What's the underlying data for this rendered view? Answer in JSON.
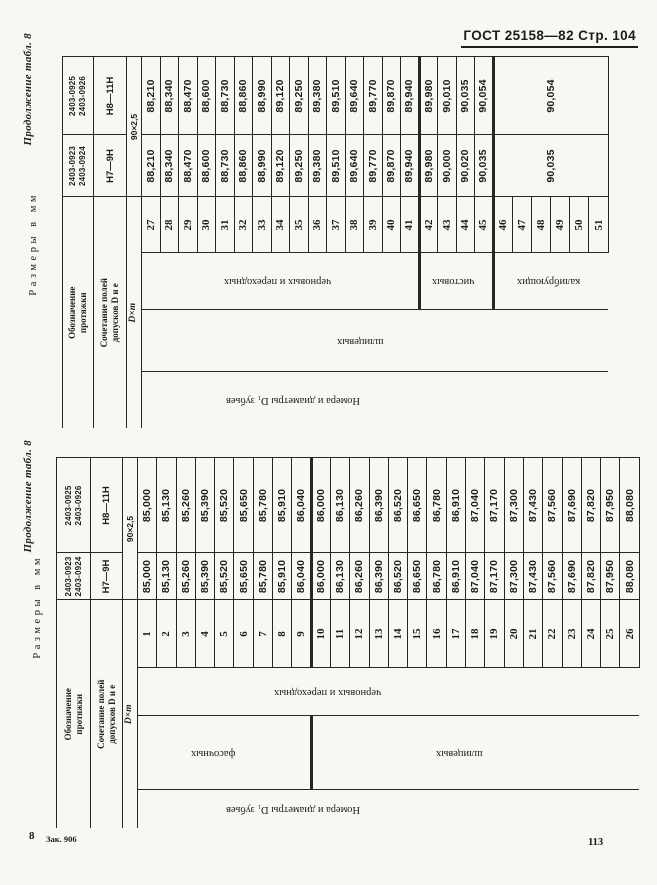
{
  "page": {
    "header": "ГОСТ 25158—82 Стр. 104",
    "footer_mark": "8",
    "footer_order": "Зак. 906",
    "footer_page": "113",
    "ink": "#1c1c1c",
    "paper": "#f8f7f2"
  },
  "tables": [
    {
      "continuation_note": "Продолжение табл. 8",
      "units_note": "Размеры в мм",
      "headers": {
        "designation": "Обозначение\nпротяжки",
        "tolerance": "Сочетание полей\nдопусков D и е",
        "dxm": "D×m",
        "dxm_value": "90×2,5",
        "teeth_group": "Номера и диаметры D₁ зубьев"
      },
      "variants": [
        {
          "designation": "2403-0923\n2403-0924",
          "tolerance": "Н7—9Н"
        },
        {
          "designation": "2403-0925\n2403-0926",
          "tolerance": "Н8—11Н"
        }
      ],
      "tooth_types": [
        {
          "label": "шлицевых",
          "count": 25
        }
      ],
      "tooth_sections": [
        {
          "label": "черновых и переходных",
          "count": 15
        },
        {
          "label": "чистовых",
          "count": 4
        },
        {
          "label": "калибрующих",
          "count": 6
        }
      ],
      "teeth": [
        {
          "n": "27",
          "d": [
            "88,210",
            "88,210"
          ]
        },
        {
          "n": "28",
          "d": [
            "88,340",
            "88,340"
          ]
        },
        {
          "n": "29",
          "d": [
            "88,470",
            "88,470"
          ]
        },
        {
          "n": "30",
          "d": [
            "88,600",
            "88,600"
          ]
        },
        {
          "n": "31",
          "d": [
            "88,730",
            "88,730"
          ]
        },
        {
          "n": "32",
          "d": [
            "88,860",
            "88,860"
          ]
        },
        {
          "n": "33",
          "d": [
            "88,990",
            "88,990"
          ]
        },
        {
          "n": "34",
          "d": [
            "89,120",
            "89,120"
          ]
        },
        {
          "n": "35",
          "d": [
            "89,250",
            "89,250"
          ]
        },
        {
          "n": "36",
          "d": [
            "89,380",
            "89,380"
          ]
        },
        {
          "n": "37",
          "d": [
            "89,510",
            "89,510"
          ]
        },
        {
          "n": "38",
          "d": [
            "89,640",
            "89,640"
          ]
        },
        {
          "n": "39",
          "d": [
            "89,770",
            "89,770"
          ]
        },
        {
          "n": "40",
          "d": [
            "89,870",
            "89,870"
          ]
        },
        {
          "n": "41",
          "d": [
            "89,940",
            "89,940"
          ]
        },
        {
          "n": "42",
          "d": [
            "89,980",
            "89,980"
          ]
        },
        {
          "n": "43",
          "d": [
            "90,000",
            "90,010"
          ]
        },
        {
          "n": "44",
          "d": [
            "90,020",
            "90,035"
          ]
        },
        {
          "n": "45",
          "d": [
            "90,035",
            "90,054"
          ]
        },
        {
          "n": "46"
        },
        {
          "n": "47"
        },
        {
          "n": "48"
        },
        {
          "n": "49"
        },
        {
          "n": "50"
        },
        {
          "n": "51"
        }
      ],
      "merged_tail": {
        "span": 6,
        "d": [
          "90,035",
          "90,054"
        ]
      }
    },
    {
      "continuation_note": "Продолжение табл. 8",
      "units_note": "Размеры в мм",
      "headers": {
        "designation": "Обозначение\nпротяжки",
        "tolerance": "Сочетание полей\nдопусков D и е",
        "dxm": "D×m",
        "dxm_value": "90×2,5",
        "teeth_group": "Номера и диаметры D₁ зубьев"
      },
      "variants": [
        {
          "designation": "2403-0923\n2403-0924",
          "tolerance": "Н7—9Н"
        },
        {
          "designation": "2403-0925\n2403-0926",
          "tolerance": "Н8—11Н"
        }
      ],
      "tooth_types": [
        {
          "label": "фасочных",
          "count": 9
        },
        {
          "label": "шлицевых",
          "count": 17
        }
      ],
      "tooth_sections": [
        {
          "label": "черновых и переходных",
          "count": 26
        }
      ],
      "teeth": [
        {
          "n": "1",
          "d": [
            "85,000",
            "85,000"
          ]
        },
        {
          "n": "2",
          "d": [
            "85,130",
            "85,130"
          ]
        },
        {
          "n": "3",
          "d": [
            "85,260",
            "85,260"
          ]
        },
        {
          "n": "4",
          "d": [
            "85,390",
            "85,390"
          ]
        },
        {
          "n": "5",
          "d": [
            "85,520",
            "85,520"
          ]
        },
        {
          "n": "6",
          "d": [
            "85,650",
            "85,650"
          ]
        },
        {
          "n": "7",
          "d": [
            "85,780",
            "85,780"
          ]
        },
        {
          "n": "8",
          "d": [
            "85,910",
            "85,910"
          ]
        },
        {
          "n": "9",
          "d": [
            "86,040",
            "86,040"
          ]
        },
        {
          "n": "10",
          "d": [
            "86,000",
            "86,000"
          ]
        },
        {
          "n": "11",
          "d": [
            "86,130",
            "86,130"
          ]
        },
        {
          "n": "12",
          "d": [
            "86,260",
            "86,260"
          ]
        },
        {
          "n": "13",
          "d": [
            "86,390",
            "86,390"
          ]
        },
        {
          "n": "14",
          "d": [
            "86,520",
            "86,520"
          ]
        },
        {
          "n": "15",
          "d": [
            "86,650",
            "86,650"
          ]
        },
        {
          "n": "16",
          "d": [
            "86,780",
            "86,780"
          ]
        },
        {
          "n": "17",
          "d": [
            "86,910",
            "86,910"
          ]
        },
        {
          "n": "18",
          "d": [
            "87,040",
            "87,040"
          ]
        },
        {
          "n": "19",
          "d": [
            "87,170",
            "87,170"
          ]
        },
        {
          "n": "20",
          "d": [
            "87,300",
            "87,300"
          ]
        },
        {
          "n": "21",
          "d": [
            "87,430",
            "87,430"
          ]
        },
        {
          "n": "22",
          "d": [
            "87,560",
            "87,560"
          ]
        },
        {
          "n": "23",
          "d": [
            "87,690",
            "87,690"
          ]
        },
        {
          "n": "24",
          "d": [
            "87,820",
            "87,820"
          ]
        },
        {
          "n": "25",
          "d": [
            "87,950",
            "87,950"
          ]
        },
        {
          "n": "26",
          "d": [
            "88,080",
            "88,080"
          ]
        }
      ]
    }
  ]
}
